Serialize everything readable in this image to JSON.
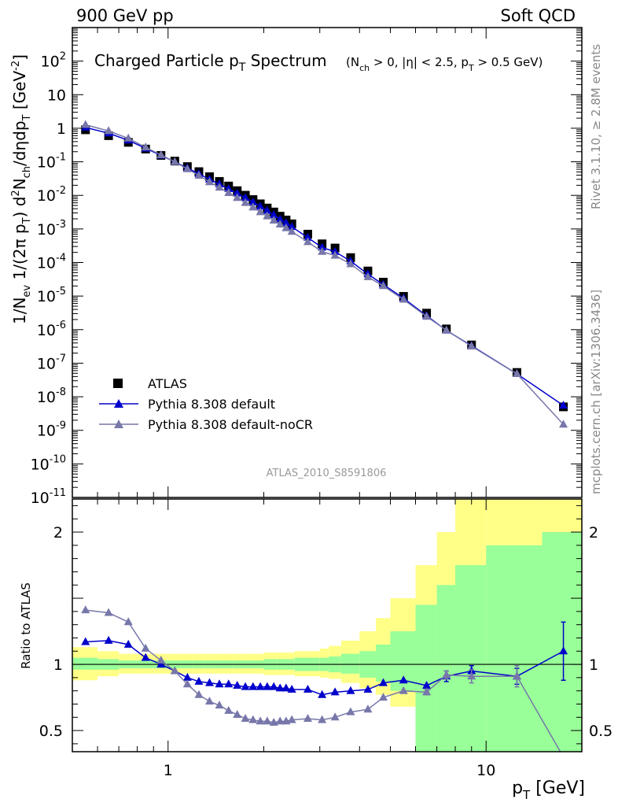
{
  "header": {
    "left": "900 GeV pp",
    "right": "Soft QCD"
  },
  "side_labels": {
    "rivet": "Rivet 3.1.10, ≥ 2.8M events",
    "mcplots": "mcplots.cern.ch [arXiv:1306.3436]"
  },
  "analysis_id": "ATLAS_2010_S8591806",
  "colors": {
    "data": "#000000",
    "default": "#0000cc",
    "nocr": "#7777aa",
    "band_inner": "#99ff99",
    "band_outer": "#ffff88"
  },
  "chart_data": [
    {
      "type": "line",
      "panel": "main",
      "title": "Charged Particle p_T Spectrum",
      "title_cuts": "(N_ch > 0, |η| < 2.5, p_T > 0.5 GeV)",
      "ylabel": "1/N_ev 1/(2π p_T) d²N_ch/dηdp_T [GeV^-2]",
      "xlabel": "p_T [GeV]",
      "x_scale": "log",
      "y_scale": "log",
      "xlim": [
        0.5,
        20
      ],
      "ylim": [
        1e-11,
        1000
      ],
      "y_ticks": [
        "10^-11",
        "10^-10",
        "10^-9",
        "10^-8",
        "10^-7",
        "10^-6",
        "10^-5",
        "10^-4",
        "10^-3",
        "10^-2",
        "10^-1",
        "1",
        "10",
        "10^2"
      ],
      "legend_position": "bottom-left",
      "legend": [
        "ATLAS",
        "Pythia 8.308 default",
        "Pythia 8.308 default-noCR"
      ],
      "x": [
        0.55,
        0.65,
        0.75,
        0.85,
        0.95,
        1.05,
        1.15,
        1.25,
        1.35,
        1.45,
        1.55,
        1.65,
        1.75,
        1.85,
        1.95,
        2.05,
        2.15,
        2.25,
        2.35,
        2.45,
        2.75,
        3.05,
        3.35,
        3.75,
        4.25,
        4.75,
        5.5,
        6.5,
        7.5,
        9.0,
        12.5,
        17.5
      ],
      "series": [
        {
          "name": "ATLAS",
          "values": [
            0.9,
            0.6,
            0.38,
            0.24,
            0.155,
            0.105,
            0.072,
            0.051,
            0.036,
            0.026,
            0.019,
            0.0138,
            0.0101,
            0.0075,
            0.0056,
            0.0042,
            0.0032,
            0.0024,
            0.00185,
            0.00142,
            0.0007,
            0.00036,
            0.00027,
            0.00014,
            5.6e-05,
            2.6e-05,
            9.8e-06,
            3.1e-06,
            1.05e-06,
            3.5e-07,
            5.3e-08,
            5e-09
          ]
        },
        {
          "name": "Pythia 8.308 default",
          "values": [
            1.06,
            0.71,
            0.436,
            0.252,
            0.155,
            0.1,
            0.065,
            0.044,
            0.03,
            0.0216,
            0.0156,
            0.0114,
            0.0085,
            0.0063,
            0.0047,
            0.0035,
            0.0026,
            0.00195,
            0.0015,
            0.00116,
            0.00055,
            0.00028,
            0.00021,
            0.00011,
            4.5e-05,
            2.2e-05,
            8.6e-06,
            2.6e-06,
            9.5e-07,
            3.3e-07,
            4.8e-08,
            5.5e-09
          ]
        },
        {
          "name": "Pythia 8.308 default-noCR",
          "values": [
            1.27,
            0.83,
            0.5,
            0.27,
            0.16,
            0.1,
            0.061,
            0.039,
            0.025,
            0.0172,
            0.0119,
            0.0085,
            0.006,
            0.0044,
            0.0032,
            0.0024,
            0.0018,
            0.00137,
            0.00106,
            0.00083,
            0.00041,
            0.00021,
            0.000162,
            9e-05,
            3.7e-05,
            2e-05,
            7.9e-06,
            2.45e-06,
            9.6e-07,
            3.2e-07,
            4.8e-08,
            1.5e-09
          ]
        }
      ]
    },
    {
      "type": "line",
      "panel": "ratio",
      "ylabel": "Ratio to ATLAS",
      "xlabel": "p_T [GeV]",
      "x_scale": "log",
      "xlim": [
        0.5,
        20
      ],
      "ylim": [
        0.34,
        2.25
      ],
      "y_ticks": [
        0.5,
        1,
        2
      ],
      "x_tick_labels": [
        1,
        10
      ],
      "x": [
        0.55,
        0.65,
        0.75,
        0.85,
        0.95,
        1.05,
        1.15,
        1.25,
        1.35,
        1.45,
        1.55,
        1.65,
        1.75,
        1.85,
        1.95,
        2.05,
        2.15,
        2.25,
        2.35,
        2.45,
        2.75,
        3.05,
        3.35,
        3.75,
        4.25,
        4.75,
        5.5,
        6.5,
        7.5,
        9.0,
        12.5,
        17.5
      ],
      "series": [
        {
          "name": "Pythia 8.308 default",
          "values": [
            1.17,
            1.18,
            1.15,
            1.05,
            1.0,
            0.95,
            0.9,
            0.87,
            0.86,
            0.85,
            0.85,
            0.84,
            0.83,
            0.83,
            0.83,
            0.83,
            0.83,
            0.82,
            0.82,
            0.81,
            0.81,
            0.77,
            0.79,
            0.8,
            0.81,
            0.86,
            0.88,
            0.84,
            0.91,
            0.95,
            0.91,
            1.1
          ],
          "errors": [
            0.0,
            0.0,
            0.0,
            0.0,
            0.0,
            0.0,
            0.0,
            0.0,
            0.0,
            0.0,
            0.0,
            0.0,
            0.0,
            0.0,
            0.0,
            0.0,
            0.0,
            0.0,
            0.0,
            0.0,
            0.0,
            0.0,
            0.0,
            0.0,
            0.0,
            0.0,
            0.0,
            0.0,
            0.04,
            0.04,
            0.06,
            0.22
          ]
        },
        {
          "name": "Pythia 8.308 default-noCR",
          "values": [
            1.41,
            1.39,
            1.32,
            1.12,
            1.03,
            0.95,
            0.85,
            0.77,
            0.72,
            0.69,
            0.65,
            0.62,
            0.59,
            0.58,
            0.57,
            0.57,
            0.56,
            0.57,
            0.57,
            0.58,
            0.59,
            0.58,
            0.6,
            0.64,
            0.66,
            0.75,
            0.8,
            0.79,
            0.92,
            0.91,
            0.91,
            0.3
          ],
          "errors": [
            0.0,
            0.0,
            0.0,
            0.0,
            0.0,
            0.0,
            0.0,
            0.0,
            0.0,
            0.0,
            0.0,
            0.0,
            0.0,
            0.0,
            0.0,
            0.0,
            0.0,
            0.0,
            0.0,
            0.0,
            0.0,
            0.0,
            0.0,
            0.0,
            0.0,
            0.0,
            0.0,
            0.02,
            0.03,
            0.05,
            0.08,
            0.0
          ]
        }
      ],
      "uncertainty_bands": {
        "edges": [
          0.5,
          0.6,
          0.7,
          0.8,
          0.9,
          1.0,
          1.1,
          1.2,
          1.3,
          1.4,
          1.5,
          1.6,
          1.7,
          1.8,
          1.9,
          2.0,
          2.1,
          2.2,
          2.3,
          2.4,
          2.5,
          3.0,
          3.2,
          3.5,
          4.0,
          4.5,
          5.0,
          6.0,
          7.0,
          8.0,
          10.0,
          15.0,
          20.0
        ],
        "inner_lo": [
          0.96,
          0.96,
          0.97,
          0.97,
          0.97,
          0.97,
          0.97,
          0.97,
          0.97,
          0.97,
          0.97,
          0.97,
          0.97,
          0.97,
          0.97,
          0.96,
          0.96,
          0.96,
          0.96,
          0.96,
          0.95,
          0.95,
          0.94,
          0.93,
          0.9,
          0.87,
          0.8,
          0.3,
          0.3,
          0.3,
          0.3,
          0.3
        ],
        "inner_hi": [
          1.05,
          1.04,
          1.03,
          1.03,
          1.03,
          1.03,
          1.03,
          1.03,
          1.03,
          1.03,
          1.03,
          1.03,
          1.03,
          1.03,
          1.03,
          1.04,
          1.04,
          1.04,
          1.04,
          1.04,
          1.05,
          1.05,
          1.06,
          1.08,
          1.1,
          1.15,
          1.25,
          1.45,
          1.6,
          1.75,
          1.9,
          2.0
        ],
        "outer_lo": [
          0.88,
          0.91,
          0.93,
          0.93,
          0.93,
          0.93,
          0.93,
          0.93,
          0.93,
          0.93,
          0.93,
          0.93,
          0.93,
          0.93,
          0.93,
          0.92,
          0.92,
          0.92,
          0.92,
          0.92,
          0.91,
          0.9,
          0.89,
          0.86,
          0.82,
          0.77,
          0.68,
          0.3,
          0.3,
          0.3,
          0.3,
          0.3
        ],
        "outer_hi": [
          1.13,
          1.1,
          1.08,
          1.08,
          1.08,
          1.08,
          1.08,
          1.08,
          1.08,
          1.08,
          1.08,
          1.08,
          1.08,
          1.08,
          1.08,
          1.09,
          1.09,
          1.09,
          1.09,
          1.09,
          1.1,
          1.12,
          1.14,
          1.18,
          1.25,
          1.35,
          1.5,
          1.75,
          2.0,
          2.3,
          2.3,
          2.3
        ]
      }
    }
  ]
}
